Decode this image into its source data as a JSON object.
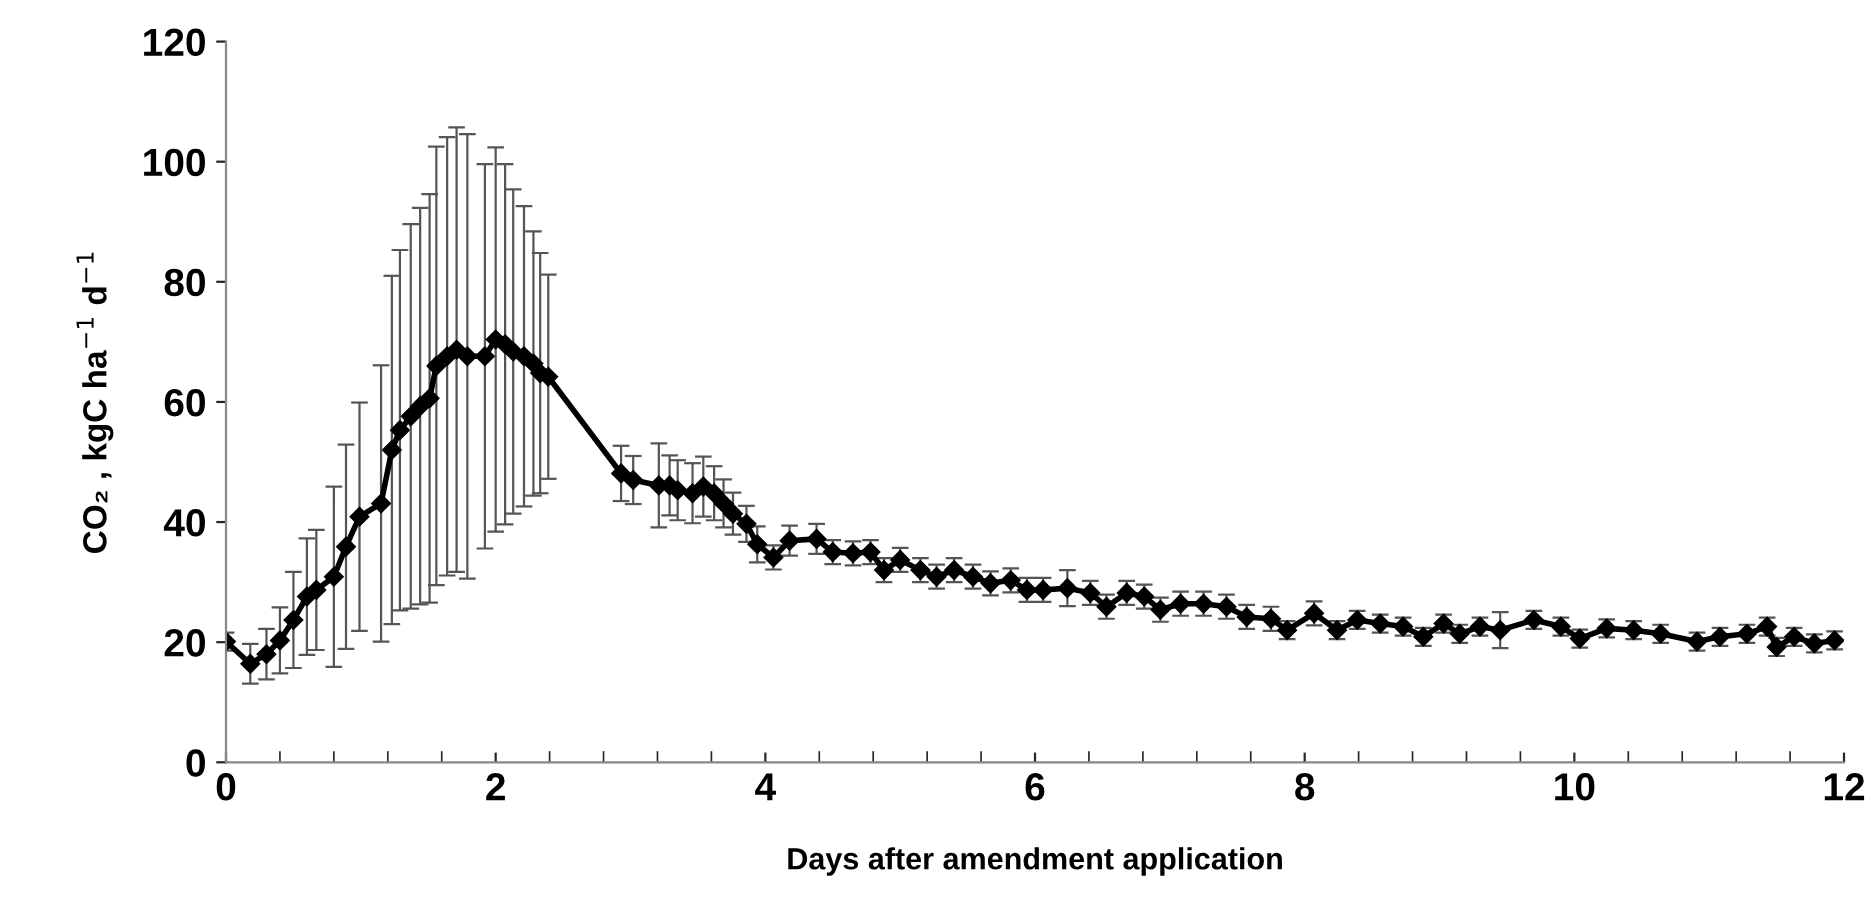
{
  "chart_data": {
    "type": "line",
    "xlabel": "Days after amendment application",
    "ylabel": "CO₂ , kgC ha$^{−1}$ d$^{−1}$",
    "xlim": [
      0,
      12
    ],
    "xticks": [
      0,
      2,
      4,
      6,
      8,
      10,
      12
    ],
    "ylim": [
      0,
      120
    ],
    "yticks": [
      0,
      20,
      40,
      60,
      80,
      100,
      120
    ],
    "grid": false,
    "legend": false,
    "marker": "diamond",
    "line_style": "solid",
    "series": [
      {
        "color": "#000000",
        "x": [
          0.0,
          0.18,
          0.3,
          0.4,
          0.5,
          0.6,
          0.67,
          0.8,
          0.89,
          0.99,
          1.15,
          1.23,
          1.29,
          1.37,
          1.44,
          1.51,
          1.56,
          1.64,
          1.71,
          1.79,
          1.92,
          2.0,
          2.07,
          2.13,
          2.21,
          2.28,
          2.33,
          2.39,
          2.93,
          3.02,
          3.21,
          3.29,
          3.35,
          3.46,
          3.54,
          3.62,
          3.69,
          3.76,
          3.86,
          3.94,
          4.06,
          4.18,
          4.38,
          4.5,
          4.65,
          4.78,
          4.88,
          5.0,
          5.15,
          5.27,
          5.4,
          5.54,
          5.67,
          5.82,
          5.94,
          6.06,
          6.24,
          6.41,
          6.53,
          6.68,
          6.81,
          6.93,
          7.08,
          7.25,
          7.42,
          7.57,
          7.75,
          7.87,
          8.07,
          8.24,
          8.39,
          8.56,
          8.73,
          8.88,
          9.03,
          9.15,
          9.3,
          9.45,
          9.7,
          9.9,
          10.04,
          10.24,
          10.44,
          10.64,
          10.91,
          11.08,
          11.28,
          11.43,
          11.5,
          11.63,
          11.78,
          11.93
        ],
        "values": [
          20.1,
          16.4,
          18.0,
          20.3,
          23.7,
          27.6,
          28.7,
          30.9,
          35.9,
          40.9,
          43.1,
          52,
          55.3,
          57.6,
          59.3,
          60.6,
          66,
          67.6,
          68.7,
          67.6,
          67.6,
          70.4,
          69.6,
          68.4,
          67.6,
          66.4,
          64.8,
          64.2,
          48.1,
          47,
          46.1,
          46.1,
          45.3,
          44.8,
          45.9,
          44.8,
          43.1,
          41.4,
          39.7,
          36.3,
          34.1,
          36.9,
          37.2,
          35,
          34.8,
          35,
          32,
          33.7,
          32,
          30.9,
          32,
          30.9,
          29.8,
          30.3,
          28.7,
          28.7,
          29,
          28.2,
          25.9,
          28.2,
          27.6,
          25.4,
          26.4,
          26.4,
          25.9,
          24.2,
          23.9,
          22,
          24.8,
          22,
          23.7,
          23.1,
          22.6,
          20.9,
          23.1,
          21.4,
          22.6,
          22,
          23.7,
          22.6,
          20.6,
          22.3,
          22,
          21.4,
          20.1,
          20.9,
          21.4,
          22.6,
          19.2,
          20.9,
          19.8,
          20.3
        ],
        "errors": [
          1.5,
          3.3,
          4.2,
          5.5,
          8,
          9.7,
          10,
          15,
          17,
          19,
          23,
          29,
          30,
          32,
          33,
          34,
          36.5,
          36.5,
          37,
          37,
          32,
          32,
          30,
          27,
          25,
          22,
          20,
          17,
          4.6,
          4,
          7,
          5,
          5,
          5,
          5,
          4.5,
          4,
          3.5,
          3,
          3,
          2,
          2.5,
          2.5,
          2,
          2,
          2,
          2,
          2,
          2,
          2,
          2,
          2,
          2,
          2,
          2,
          2,
          3,
          2,
          2,
          2,
          2,
          2,
          2,
          2,
          2,
          2,
          2,
          1.5,
          2,
          1.5,
          1.5,
          1.5,
          1.5,
          1.5,
          1.5,
          1.5,
          1.5,
          3,
          1.5,
          1.5,
          1.5,
          1.5,
          1.5,
          1.5,
          1.5,
          1.5,
          1.5,
          1.5,
          1.5,
          1.5,
          1.5,
          1.5
        ]
      }
    ]
  }
}
